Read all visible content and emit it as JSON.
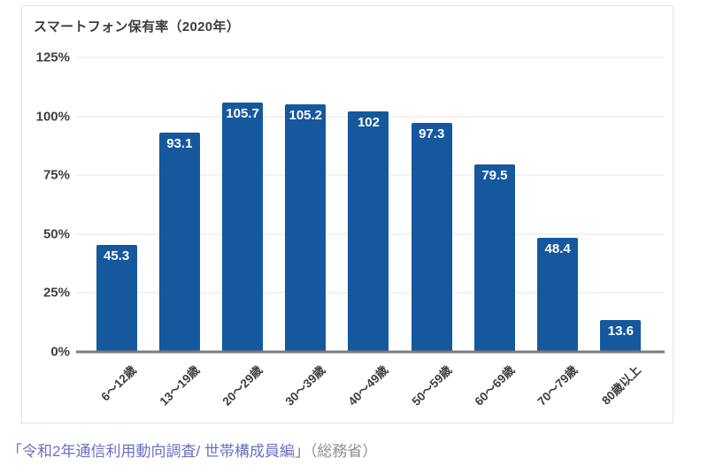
{
  "chart_data": {
    "type": "bar",
    "title": "スマートフォン保有率（2020年）",
    "categories": [
      "6〜12歳",
      "13〜19歳",
      "20〜29歳",
      "30〜39歳",
      "40〜49歳",
      "50〜59歳",
      "60〜69歳",
      "70〜79歳",
      "80歳以上"
    ],
    "values": [
      45.3,
      93.1,
      105.7,
      105.2,
      102,
      97.3,
      79.5,
      48.4,
      13.6
    ],
    "value_labels": [
      "45.3",
      "93.1",
      "105.7",
      "105.2",
      "102",
      "97.3",
      "79.5",
      "48.4",
      "13.6"
    ],
    "yticks": [
      {
        "label": "125%",
        "value": 125
      },
      {
        "label": "100%",
        "value": 100
      },
      {
        "label": "75%",
        "value": 75
      },
      {
        "label": "50%",
        "value": 50
      },
      {
        "label": "25%",
        "value": 25
      },
      {
        "label": "0%",
        "value": 0
      }
    ],
    "ylim": [
      0,
      125
    ],
    "xlabel": "",
    "ylabel": "",
    "grid": true,
    "legend_position": "none",
    "bar_color": "#15589e",
    "value_label_color": "#ffffff",
    "gridline_color": "#e4e4e4",
    "axis_line_color": "#7c7c7c"
  },
  "footer": {
    "link_text": "「令和2年通信利用動向調査/ 世帯構成員編」",
    "suffix": "（総務省）"
  }
}
